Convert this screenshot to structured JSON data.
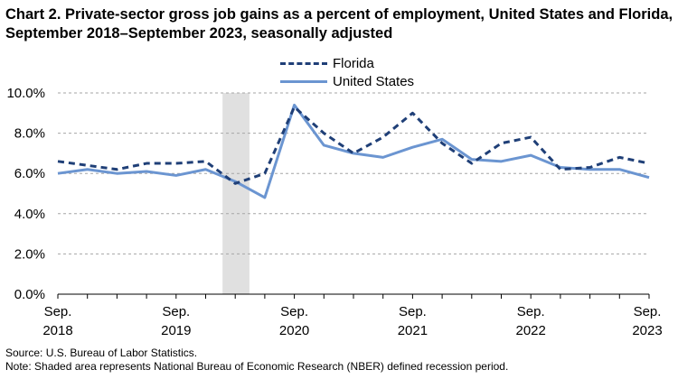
{
  "title": "Chart 2. Private-sector gross job gains as a percent of employment, United States and Florida, September 2018–September 2023, seasonally adjusted",
  "source": "Source: U.S. Bureau of Labor Statistics.",
  "note": "Note: Shaded area represents National Bureau of Economic Research (NBER) defined recession period.",
  "chart_data": {
    "type": "line",
    "title": "Chart 2. Private-sector gross job gains as a percent of employment, United States and Florida, September 2018–September 2023, seasonally adjusted",
    "xlabel": "",
    "ylabel": "",
    "ylim": [
      0,
      10
    ],
    "yticks": [
      "0.0%",
      "2.0%",
      "4.0%",
      "6.0%",
      "8.0%",
      "10.0%"
    ],
    "x_tick_labels": [
      {
        "index": 0,
        "line1": "Sep.",
        "line2": "2018"
      },
      {
        "index": 4,
        "line1": "Sep.",
        "line2": "2019"
      },
      {
        "index": 8,
        "line1": "Sep.",
        "line2": "2020"
      },
      {
        "index": 12,
        "line1": "Sep.",
        "line2": "2021"
      },
      {
        "index": 16,
        "line1": "Sep.",
        "line2": "2022"
      },
      {
        "index": 20,
        "line1": "Sep.",
        "line2": "2023"
      }
    ],
    "categories": [
      "Sep 2018",
      "Dec 2018",
      "Mar 2019",
      "Jun 2019",
      "Sep 2019",
      "Dec 2019",
      "Mar 2020",
      "Jun 2020",
      "Sep 2020",
      "Dec 2020",
      "Mar 2021",
      "Jun 2021",
      "Sep 2021",
      "Dec 2021",
      "Mar 2022",
      "Jun 2022",
      "Sep 2022",
      "Dec 2022",
      "Mar 2023",
      "Jun 2023",
      "Sep 2023"
    ],
    "recession": {
      "start": "Mar 2020",
      "end": "Jun 2020"
    },
    "grid": true,
    "legend_position": "top-center",
    "series": [
      {
        "name": "Florida",
        "style": "dashed",
        "color": "#1f3f77",
        "values": [
          6.6,
          6.4,
          6.2,
          6.5,
          6.5,
          6.6,
          5.5,
          6.0,
          9.3,
          8.0,
          7.0,
          7.8,
          9.0,
          7.5,
          6.5,
          7.5,
          7.8,
          6.2,
          6.3,
          6.8,
          6.5
        ]
      },
      {
        "name": "United States",
        "style": "solid",
        "color": "#6b95d1",
        "values": [
          6.0,
          6.2,
          6.0,
          6.1,
          5.9,
          6.2,
          5.6,
          4.8,
          9.4,
          7.4,
          7.0,
          6.8,
          7.3,
          7.7,
          6.7,
          6.6,
          6.9,
          6.3,
          6.2,
          6.2,
          5.8
        ]
      }
    ]
  }
}
